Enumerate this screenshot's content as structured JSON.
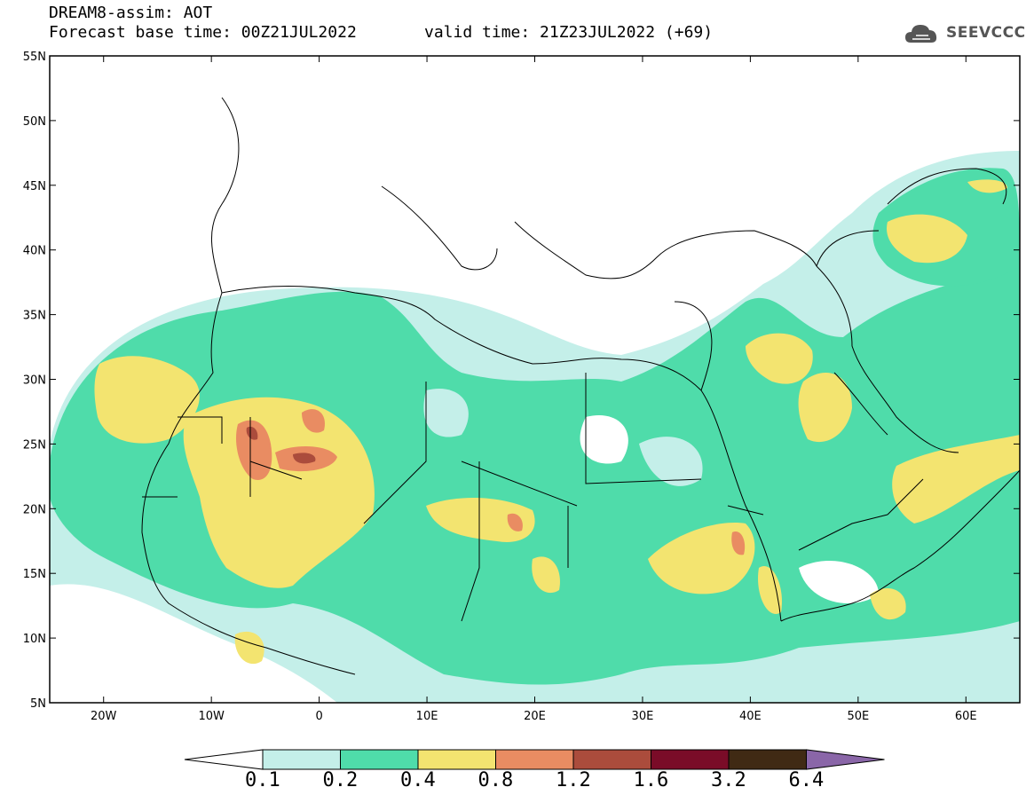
{
  "header": {
    "model_line": "DREAM8-assim: AOT",
    "base_time_line": "Forecast base time: 00Z21JUL2022",
    "valid_time_line": "valid time: 21Z23JUL2022 (+69)",
    "logo_text": "SEEVCCC",
    "logo_icon": "cloud-icon"
  },
  "map": {
    "lat_labels": [
      "55N",
      "50N",
      "45N",
      "40N",
      "35N",
      "30N",
      "25N",
      "20N",
      "15N",
      "10N",
      "5N"
    ],
    "lon_labels": [
      "20W",
      "10W",
      "0",
      "10E",
      "20E",
      "30E",
      "40E",
      "50E",
      "60E"
    ],
    "extent": {
      "lon_min": -25,
      "lon_max": 65,
      "lat_min": 5,
      "lat_max": 55
    },
    "field": "AOT"
  },
  "colorbar": {
    "labels": [
      "0.1",
      "0.2",
      "0.4",
      "0.8",
      "1.2",
      "1.6",
      "3.2",
      "6.4"
    ],
    "colors": [
      "#c4efe9",
      "#4fdcaa",
      "#f3e470",
      "#e98c62",
      "#ab4c3c",
      "#7a0c28",
      "#402a14",
      "#8a66a8"
    ],
    "under_color": "#ffffff"
  }
}
